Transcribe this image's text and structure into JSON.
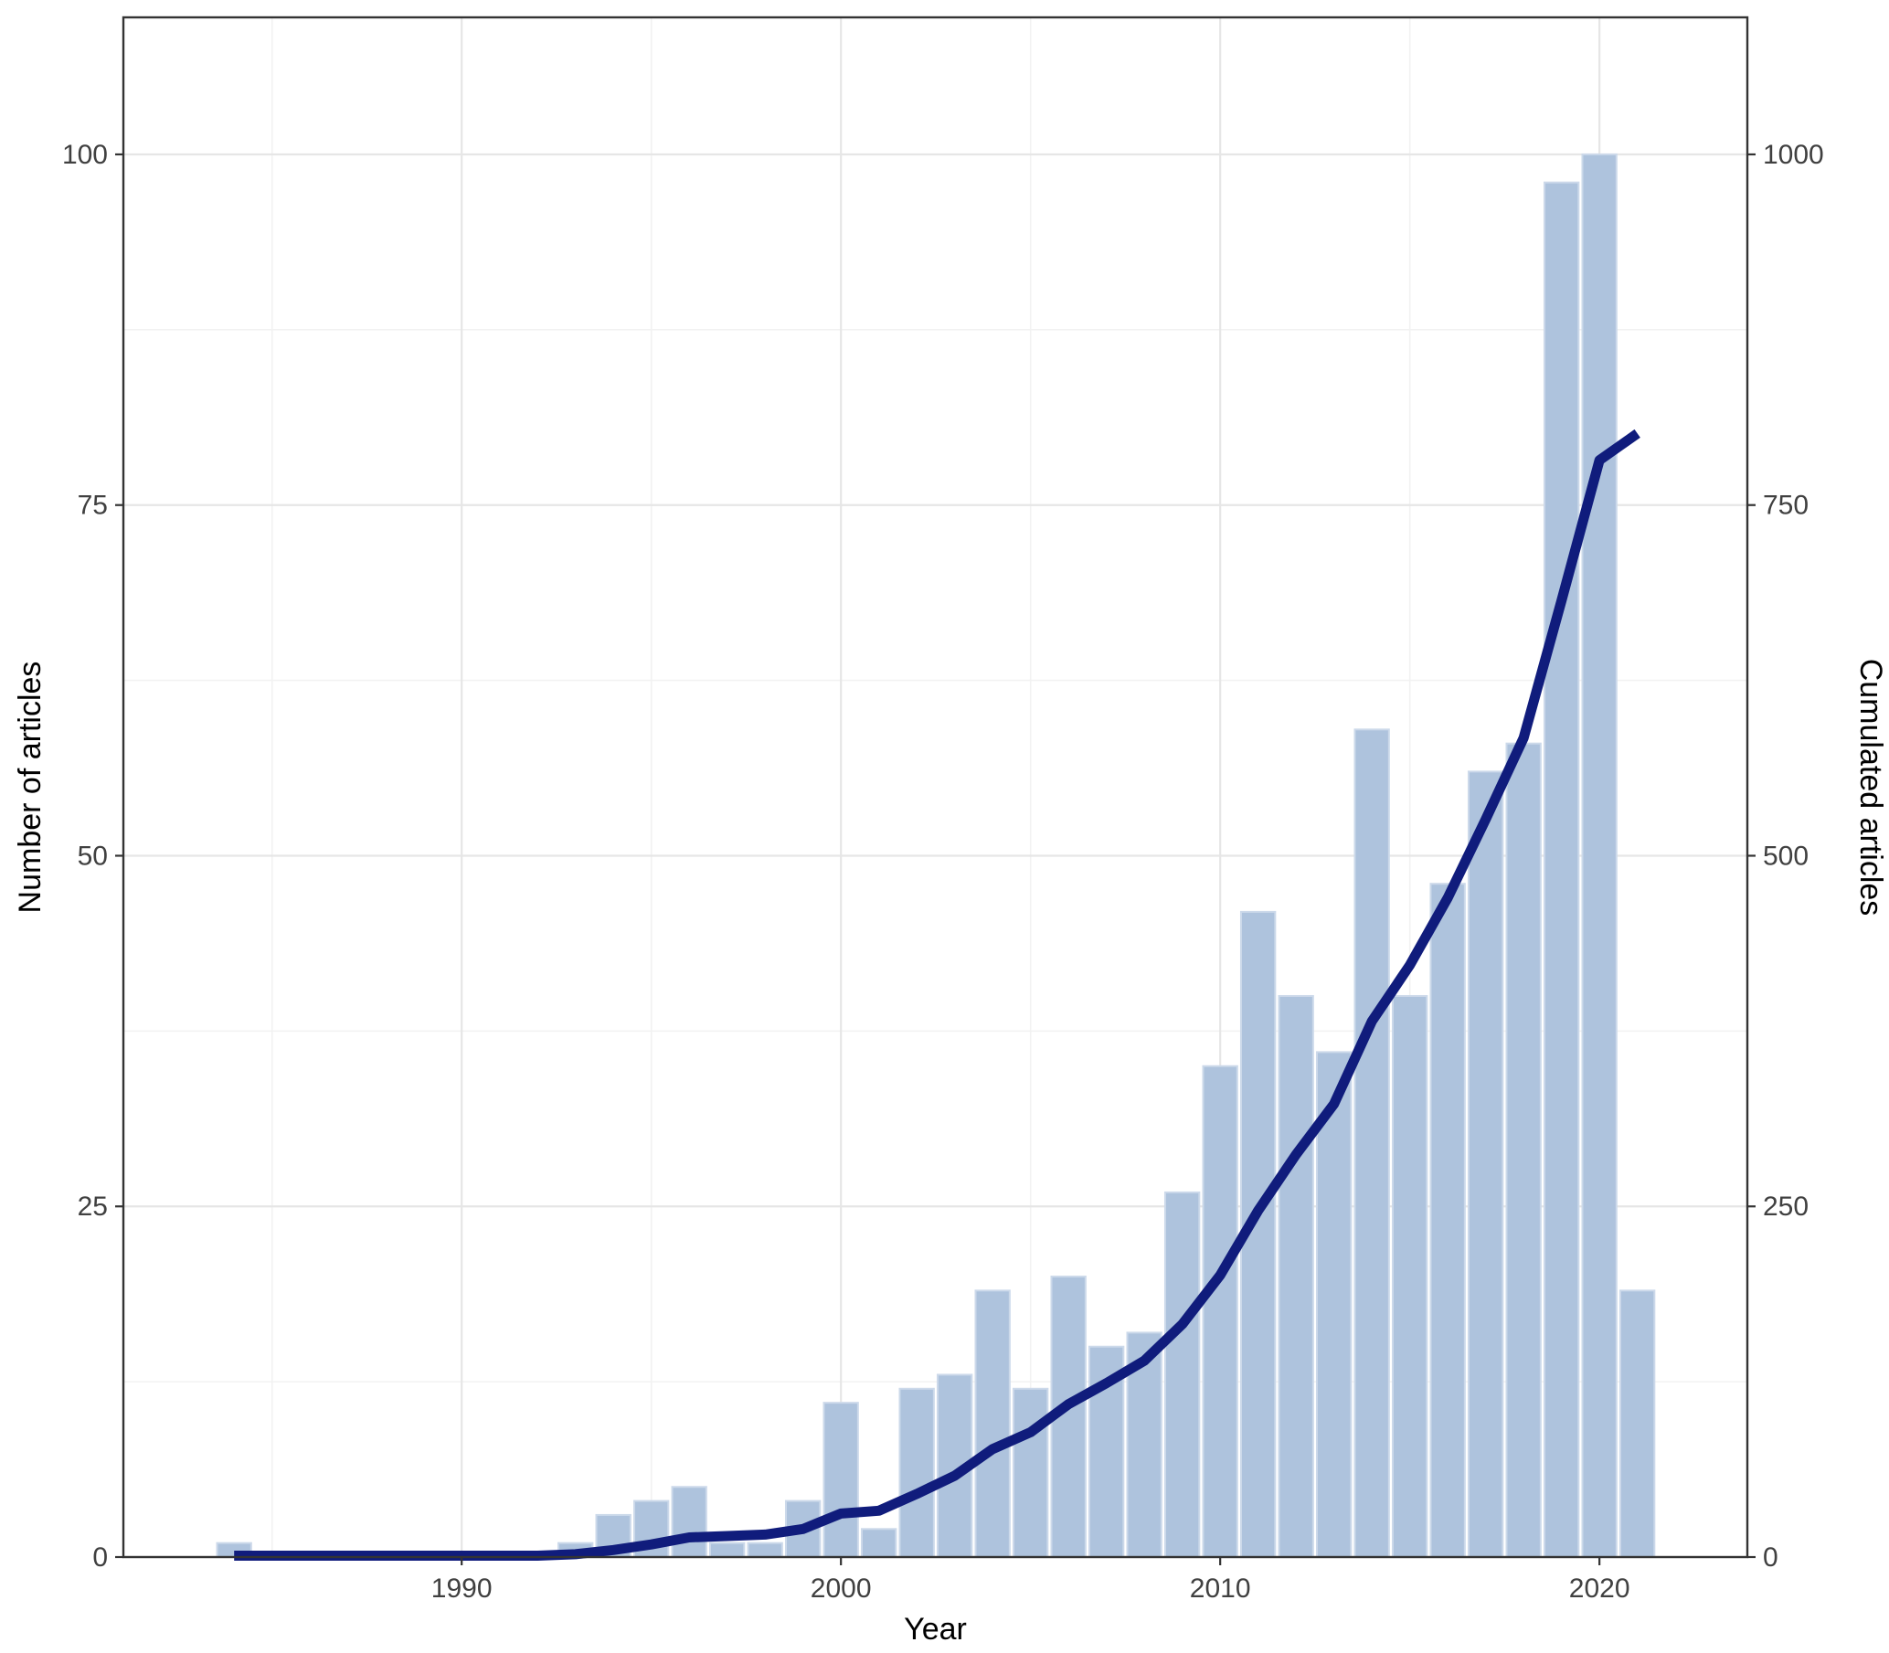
{
  "chart_data": {
    "type": "combo_bar_line",
    "title": "",
    "years": [
      1984,
      1985,
      1986,
      1987,
      1988,
      1989,
      1990,
      1991,
      1992,
      1993,
      1994,
      1995,
      1996,
      1997,
      1998,
      1999,
      2000,
      2001,
      2002,
      2003,
      2004,
      2005,
      2006,
      2007,
      2008,
      2009,
      2010,
      2011,
      2012,
      2013,
      2014,
      2015,
      2016,
      2017,
      2018,
      2019,
      2020,
      2021
    ],
    "series": [
      {
        "name": "Number of articles",
        "type": "bar",
        "axis": "left",
        "values": [
          1,
          0,
          0,
          0,
          0,
          0,
          0,
          0,
          0,
          1,
          3,
          4,
          5,
          1,
          1,
          4,
          11,
          2,
          12,
          13,
          19,
          12,
          20,
          15,
          16,
          26,
          35,
          46,
          40,
          36,
          59,
          40,
          48,
          56,
          58,
          98,
          100,
          19
        ]
      },
      {
        "name": "Cumulated articles",
        "type": "line",
        "axis": "right",
        "values": [
          1,
          1,
          1,
          1,
          1,
          1,
          1,
          1,
          1,
          2,
          5,
          9,
          14,
          15,
          16,
          20,
          31,
          33,
          45,
          58,
          77,
          89,
          109,
          124,
          140,
          166,
          201,
          247,
          287,
          323,
          382,
          422,
          470,
          526,
          584,
          682,
          782,
          801
        ]
      }
    ],
    "x_axis": {
      "title": "Year",
      "domain": [
        1981.08,
        2023.9
      ],
      "major_ticks": [
        1990,
        2000,
        2010,
        2020
      ],
      "minor_ticks": [
        1985,
        1995,
        2005,
        2015
      ]
    },
    "y_left": {
      "title": "Number of articles",
      "domain": [
        0,
        109.77
      ],
      "ticks": [
        0,
        25,
        50,
        75,
        100
      ],
      "minor_ticks": [
        12.5,
        37.5,
        62.5,
        87.5
      ]
    },
    "y_right": {
      "title": "Cumulated articles",
      "ticks": [
        0,
        250,
        500,
        750,
        1000
      ],
      "scale_vs_left": 10
    },
    "legend_position": "none",
    "grid": "major+minor"
  },
  "style": {
    "background": "#ffffff",
    "bar_fill": "#aec3dd",
    "bar_stroke": "#ccd9ea",
    "line_color": "#101c7c",
    "grid_major": "#e6e6e6",
    "grid_minor": "#f2f2f2",
    "panel_border": "#333333",
    "tick_color": "#333333",
    "tick_label_color": "#404040",
    "axis_title_color": "#000000"
  }
}
